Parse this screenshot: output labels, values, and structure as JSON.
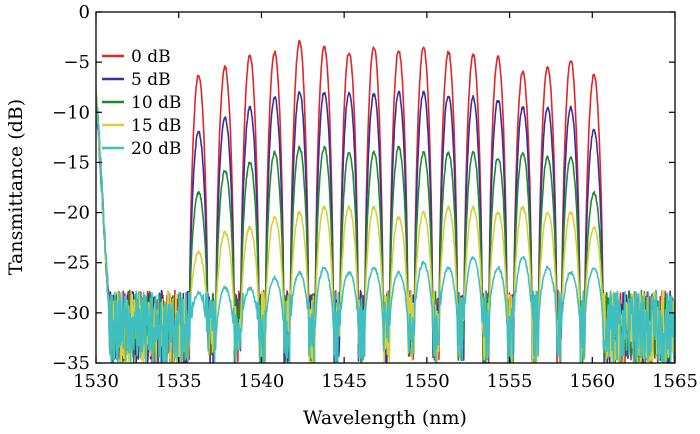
{
  "chart_data": {
    "type": "line",
    "title": "",
    "xlabel": "Wavelength (nm)",
    "ylabel": "Tansmittance (dB)",
    "xlim": [
      1530,
      1565
    ],
    "ylim": [
      -35,
      0
    ],
    "xticks": [
      1530,
      1535,
      1540,
      1545,
      1550,
      1555,
      1560,
      1565
    ],
    "yticks": [
      0,
      -5,
      -10,
      -15,
      -20,
      -25,
      -30,
      -35
    ],
    "xtick_labels": [
      "1530",
      "1535",
      "1540",
      "1545",
      "1550",
      "1555",
      "1560",
      "1565"
    ],
    "ytick_labels": [
      "0",
      "−5",
      "−10",
      "−15",
      "−20",
      "−25",
      "−30",
      "−35"
    ],
    "grid": false,
    "legend_position": "top-left",
    "noise_floor_db": -30,
    "band_edges_nm": [
      1535.3,
      1560.8
    ],
    "peak_wavelengths_nm": [
      1536.2,
      1537.8,
      1539.3,
      1540.8,
      1542.3,
      1543.8,
      1545.3,
      1546.8,
      1548.3,
      1549.8,
      1551.3,
      1552.8,
      1554.3,
      1555.8,
      1557.3,
      1558.7,
      1560.1
    ],
    "series": [
      {
        "name": "0 dB",
        "color": "#e0262b",
        "peaks": [
          -6.3,
          -5.5,
          -4.3,
          -4.0,
          -3.0,
          -3.5,
          -4.0,
          -3.5,
          -3.8,
          -3.5,
          -4.0,
          -4.3,
          -4.5,
          -6.0,
          -5.5,
          -4.8,
          -6.3
        ]
      },
      {
        "name": "5 dB",
        "color": "#3c2f9c",
        "peaks": [
          -12.0,
          -10.5,
          -9.5,
          -8.5,
          -8.0,
          -8.0,
          -8.0,
          -8.2,
          -8.0,
          -8.0,
          -8.3,
          -8.5,
          -8.8,
          -9.5,
          -9.5,
          -9.5,
          -11.8
        ]
      },
      {
        "name": "10 dB",
        "color": "#1e8a2e",
        "peaks": [
          -18.0,
          -15.8,
          -15.0,
          -14.0,
          -13.5,
          -13.5,
          -14.0,
          -14.0,
          -13.5,
          -14.0,
          -14.0,
          -14.0,
          -14.5,
          -14.0,
          -14.5,
          -14.5,
          -18.0
        ]
      },
      {
        "name": "15 dB",
        "color": "#d8cf3a",
        "peaks": [
          -24.0,
          -22.0,
          -21.5,
          -20.5,
          -20.0,
          -19.5,
          -19.5,
          -19.5,
          -20.5,
          -20.0,
          -19.5,
          -19.5,
          -20.0,
          -19.5,
          -20.0,
          -20.0,
          -21.5
        ]
      },
      {
        "name": "20 dB",
        "color": "#3fbfc0",
        "peaks": [
          -28.0,
          -27.5,
          -27.5,
          -26.5,
          -26.0,
          -25.5,
          -26.0,
          -25.5,
          -26.0,
          -25.0,
          -25.5,
          -24.5,
          -25.5,
          -24.5,
          -25.5,
          -26.0,
          -25.5
        ]
      }
    ]
  }
}
